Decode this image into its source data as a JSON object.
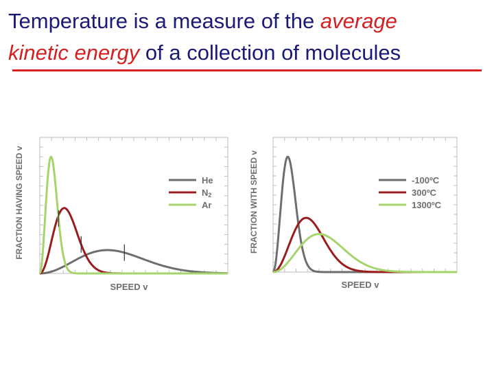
{
  "title": {
    "part1": "Temperature is a measure of the ",
    "em1": "average",
    "part2": " ",
    "em2": "kinetic energy",
    "part3": " of a collection of molecules"
  },
  "colors": {
    "title_text": "#1a1a78",
    "title_emphasis": "#d42020",
    "series_gray": "#6e6e6e",
    "series_red": "#9b1c1c",
    "series_green": "#a6d46c"
  },
  "chart_data": [
    {
      "type": "line",
      "xlabel": "SPEED v",
      "ylabel": "FRACTION HAVING SPEED v",
      "grid": false,
      "legend_position": "right",
      "series": [
        {
          "name": "He",
          "color": "#6e6e6e",
          "peak_x": 0.36,
          "peak_y": 0.2,
          "marker_x": 0.45
        },
        {
          "name": "N",
          "subscript": "2",
          "color": "#9b1c1c",
          "peak_x": 0.13,
          "peak_y": 0.56,
          "marker_x": 0.22
        },
        {
          "name": "Ar",
          "color": "#a6d46c",
          "peak_x": 0.06,
          "peak_y": 1.0,
          "marker_x": 0.1
        }
      ]
    },
    {
      "type": "line",
      "xlabel": "SPEED v",
      "ylabel": "FRACTION WITH SPEED v",
      "grid": false,
      "legend_position": "right",
      "series": [
        {
          "name": "-100ºC",
          "color": "#6e6e6e",
          "peak_x": 0.08,
          "peak_y": 1.0
        },
        {
          "name": "300ºC",
          "color": "#9b1c1c",
          "peak_x": 0.18,
          "peak_y": 0.47
        },
        {
          "name": "1300ºC",
          "color": "#a6d46c",
          "peak_x": 0.25,
          "peak_y": 0.33
        }
      ]
    }
  ]
}
